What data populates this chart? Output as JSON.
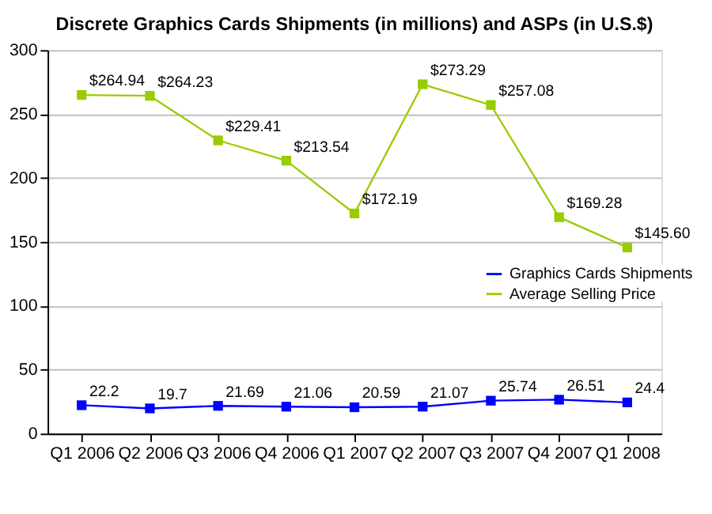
{
  "chart_data": {
    "type": "line",
    "title": "Discrete Graphics Cards Shipments (in millions) and ASPs (in U.S.$)",
    "categories": [
      "Q1 2006",
      "Q2 2006",
      "Q3 2006",
      "Q4 2006",
      "Q1 2007",
      "Q2 2007",
      "Q3 2007",
      "Q4 2007",
      "Q1 2008"
    ],
    "series": [
      {
        "name": "Graphics Cards Shipments",
        "color": "#0000ff",
        "values": [
          22.2,
          19.7,
          21.69,
          21.06,
          20.59,
          21.07,
          25.74,
          26.51,
          24.4
        ],
        "value_labels": [
          "22.2",
          "19.7",
          "21.69",
          "21.06",
          "20.59",
          "21.07",
          "25.74",
          "26.51",
          "24.4"
        ]
      },
      {
        "name": "Average Selling Price",
        "color": "#99cc00",
        "values": [
          264.94,
          264.23,
          229.41,
          213.54,
          172.19,
          273.29,
          257.08,
          169.28,
          145.6
        ],
        "value_labels": [
          "$264.94",
          "$264.23",
          "$229.41",
          "$213.54",
          "$172.19",
          "$273.29",
          "$257.08",
          "$169.28",
          "$145.60"
        ]
      }
    ],
    "ylim": [
      0,
      300
    ],
    "yticks": [
      0,
      50,
      100,
      150,
      200,
      250,
      300
    ],
    "grid": "y",
    "legend": "right",
    "marker": "square",
    "line_style": "solid"
  }
}
